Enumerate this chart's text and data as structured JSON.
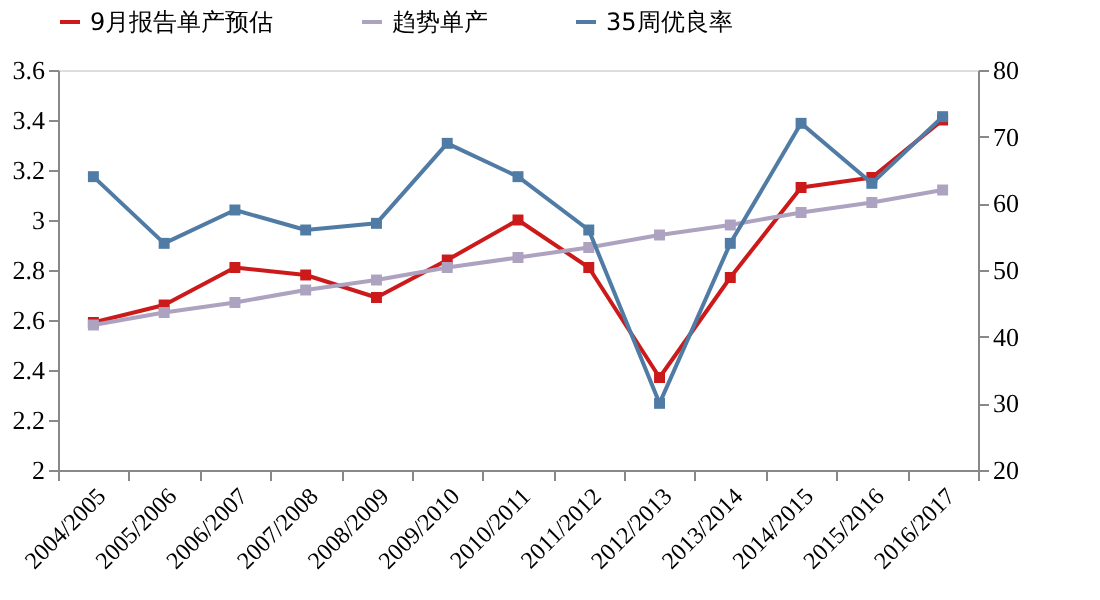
{
  "chart_data": {
    "type": "line",
    "categories": [
      "2004/2005",
      "2005/2006",
      "2006/2007",
      "2007/2008",
      "2008/2009",
      "2009/2010",
      "2010/2011",
      "2011/2012",
      "2012/2013",
      "2013/2014",
      "2014/2015",
      "2015/2016",
      "2016/2017"
    ],
    "series": [
      {
        "name": "9月报告单产预估",
        "color": "#cc1a1a",
        "values": [
          2.59,
          2.66,
          2.81,
          2.78,
          2.69,
          2.84,
          3.0,
          2.81,
          2.37,
          2.77,
          3.13,
          3.17,
          3.4
        ]
      },
      {
        "name": "趋势单产",
        "color": "#ada2c0",
        "values": [
          2.58,
          2.63,
          2.67,
          2.72,
          2.76,
          2.81,
          2.85,
          2.89,
          2.94,
          2.98,
          3.03,
          3.07,
          3.12
        ]
      },
      {
        "name": "35周优良率",
        "color": "#4f7ba4",
        "axis": "y2",
        "values": [
          64,
          54,
          59,
          56,
          57,
          69,
          64,
          56,
          30,
          54,
          72,
          63,
          73
        ]
      }
    ],
    "ylim": [
      2,
      3.6
    ],
    "yticks": [
      2,
      2.2,
      2.4,
      2.6,
      2.8,
      3,
      3.2,
      3.4,
      3.6
    ],
    "y2lim": [
      20,
      80
    ],
    "y2ticks": [
      20,
      30,
      40,
      50,
      60,
      70,
      80
    ],
    "legend": "top",
    "grid": false,
    "marker": "square",
    "line_style": "solid"
  }
}
